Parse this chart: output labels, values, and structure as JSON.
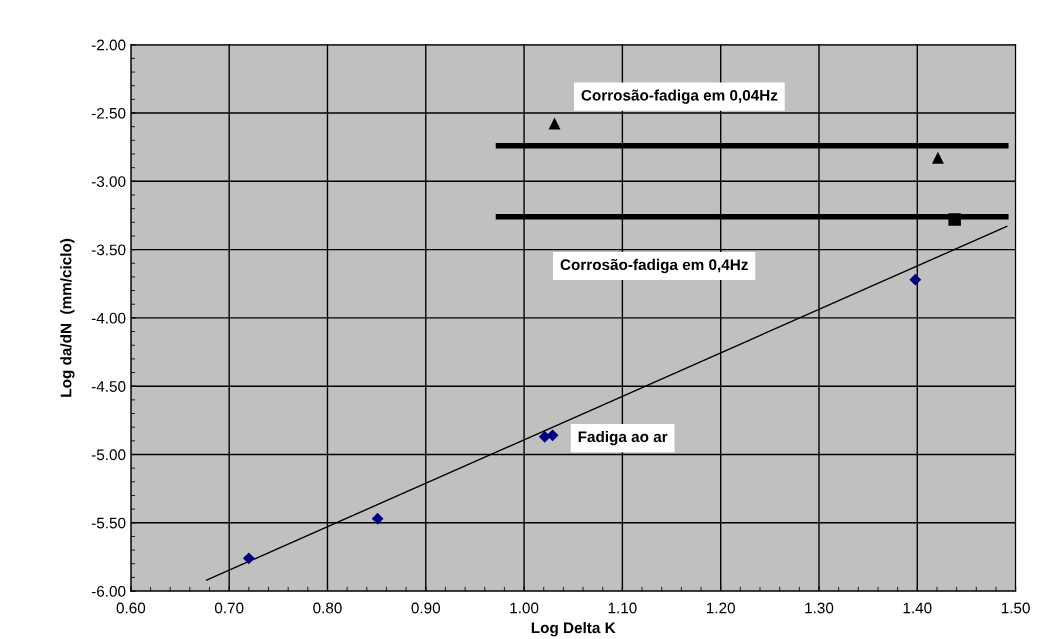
{
  "chart_data": {
    "type": "scatter",
    "xlabel": "Log Delta K",
    "ylabel": "Log da/dN  (mm/ciclo)",
    "xlim": [
      0.6,
      1.5
    ],
    "xticks": [
      {
        "value": 0.6,
        "label": "0.60"
      },
      {
        "value": 0.7,
        "label": "0.70"
      },
      {
        "value": 0.8,
        "label": "0.80"
      },
      {
        "value": 0.9,
        "label": "0.90"
      },
      {
        "value": 1.0,
        "label": "1.00"
      },
      {
        "value": 1.1,
        "label": "1.10"
      },
      {
        "value": 1.2,
        "label": "1.20"
      },
      {
        "value": 1.3,
        "label": "1.30"
      },
      {
        "value": 1.4,
        "label": "1.40"
      },
      {
        "value": 1.5,
        "label": "1.50"
      }
    ],
    "ylim": [
      -6.0,
      -2.0
    ],
    "yticks": [
      {
        "value": -6.0,
        "label": "-6.00"
      },
      {
        "value": -5.5,
        "label": "-5.50"
      },
      {
        "value": -5.0,
        "label": "-5.00"
      },
      {
        "value": -4.5,
        "label": "-4.50"
      },
      {
        "value": -4.0,
        "label": "-4.00"
      },
      {
        "value": -3.5,
        "label": "-3.50"
      },
      {
        "value": -3.0,
        "label": "-3.00"
      },
      {
        "value": -2.5,
        "label": "-2.50"
      },
      {
        "value": -2.0,
        "label": "-2.00"
      }
    ],
    "grid": true,
    "legend": false,
    "series": [
      {
        "marker": "diamond",
        "color": "#000080",
        "x": [
          0.72,
          0.851,
          1.021,
          1.029,
          1.398
        ],
        "values": [
          -5.76,
          -5.47,
          -4.87,
          -4.86,
          -3.72
        ]
      },
      {
        "name": "Fadiga ao ar",
        "type": "line",
        "color": "#000000",
        "marker": "none",
        "x": [
          0.677,
          1.491
        ],
        "values": [
          -5.92,
          -3.33
        ]
      },
      {
        "name": "Corrosão-fadiga em 0,04Hz",
        "marker": "triangle",
        "color": "#000000",
        "x": [
          1.031,
          1.421
        ],
        "values": [
          -2.58,
          -2.83
        ]
      },
      {
        "type": "line",
        "color": "#000000",
        "marker": "none",
        "x": [
          0.974,
          1.49
        ],
        "values": [
          -2.74,
          -2.74
        ]
      },
      {
        "marker": "square",
        "color": "#000000",
        "x": [
          1.438
        ],
        "values": [
          -3.28
        ]
      },
      {
        "name": "Corrosão-fadiga em 0,4Hz",
        "type": "line",
        "color": "#000000",
        "marker": "none",
        "x": [
          0.974,
          1.49
        ],
        "values": [
          -3.26,
          -3.26
        ]
      }
    ]
  }
}
